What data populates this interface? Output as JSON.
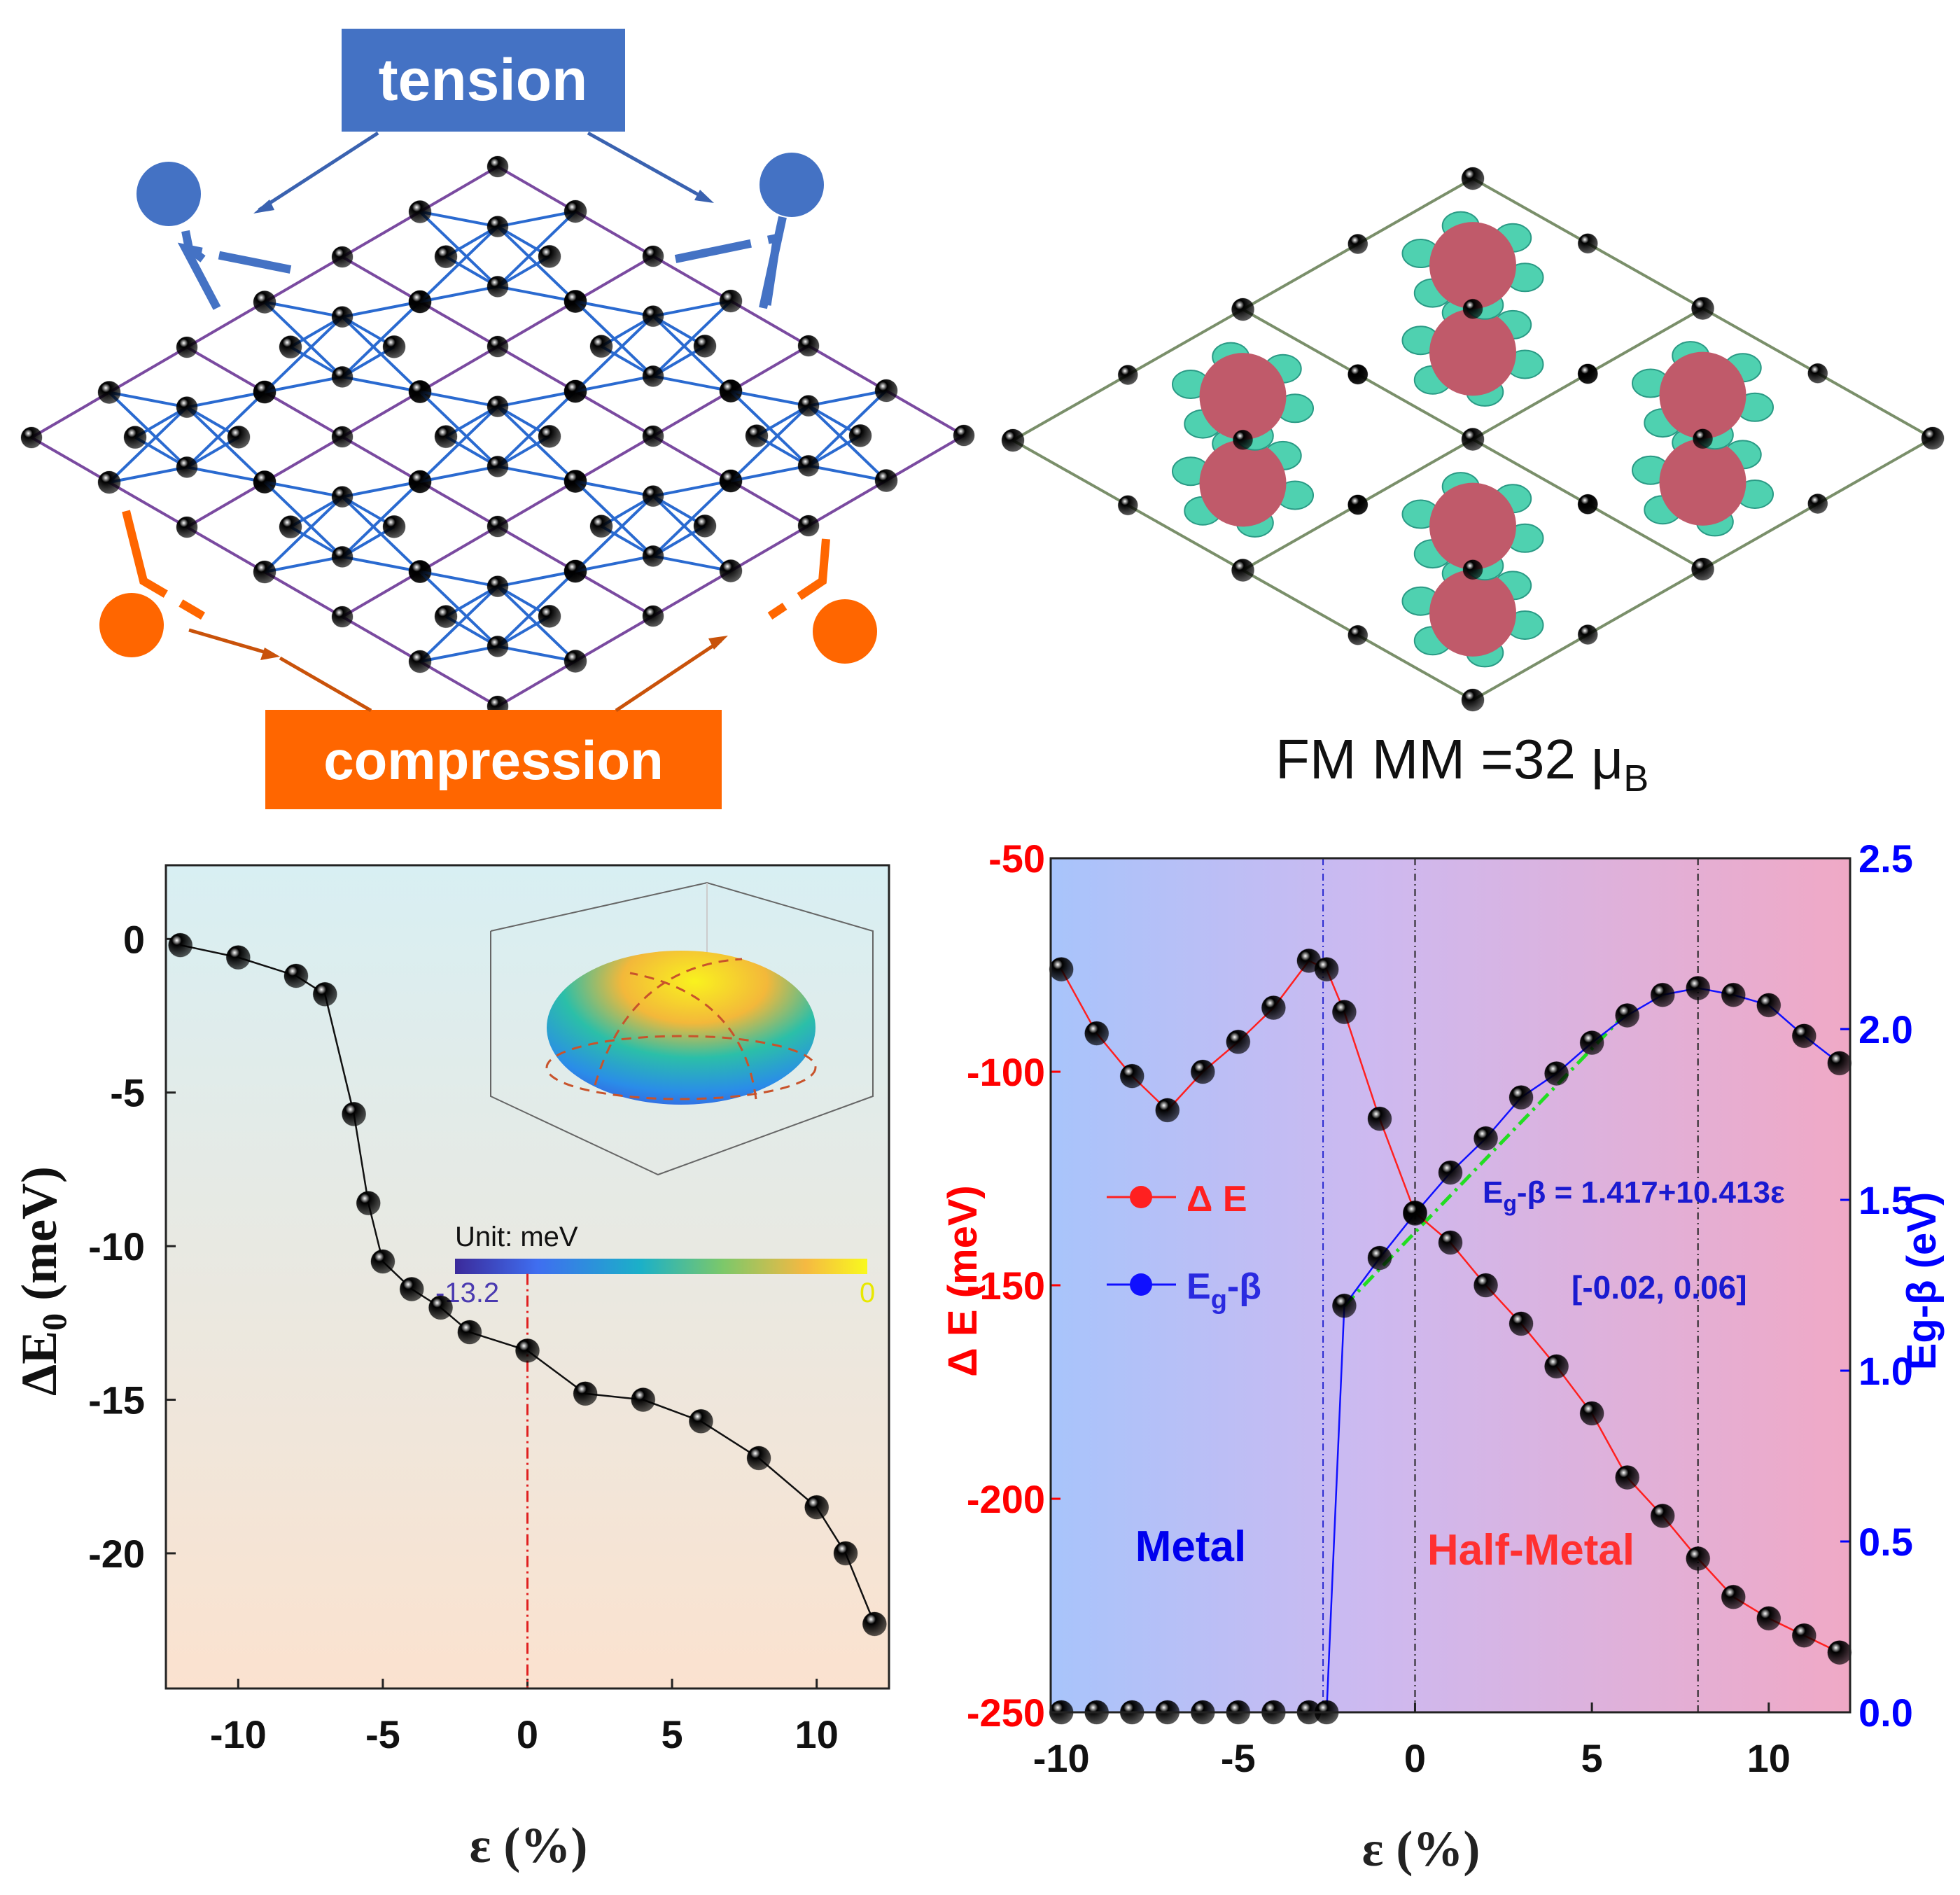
{
  "panels": {
    "strain_schematic": {
      "tension_label": "tension",
      "compression_label": "compression",
      "colors": {
        "tension": "#4472c4",
        "compression": "#ff6600",
        "atom_blue": "#1f5fd6",
        "atom_purple": "#b05cc0",
        "atom_green": "#9ccc65"
      }
    },
    "spin_density": {
      "label_prefix": "FM  MM =32 μ",
      "label_sub": "B"
    }
  },
  "chart_data": [
    {
      "type": "line",
      "title": "",
      "xlabel": "ε (%)",
      "ylabel": "ΔE",
      "ylabel_sub": "0",
      "ylabel_unit": " (meV)",
      "xlim": [
        -12.5,
        12.5
      ],
      "ylim": [
        -24.4,
        2.4
      ],
      "xticks": [
        -10,
        -5,
        0,
        5,
        10
      ],
      "yticks": [
        0,
        -5,
        -10,
        -15,
        -20
      ],
      "x": [
        -12,
        -10,
        -8,
        -7,
        -6,
        -5.5,
        -5,
        -4,
        -3,
        -2,
        0,
        2,
        4,
        6,
        8,
        10,
        11,
        12
      ],
      "y": [
        -0.2,
        -0.6,
        -1.2,
        -1.8,
        -5.7,
        -8.6,
        -10.5,
        -11.4,
        -12.0,
        -12.8,
        -13.4,
        -14.8,
        -15.0,
        -15.7,
        -16.9,
        -18.5,
        -20.0,
        -22.3
      ],
      "point_colors": [
        "black",
        "blue",
        "black",
        "black",
        "black",
        "black",
        "blue",
        "black",
        "black",
        "black",
        "black",
        "black",
        "black",
        "red",
        "black",
        "red",
        "black",
        "black"
      ],
      "reference_line_x": 0,
      "inset": {
        "colorbar_title": "Unit: meV",
        "colorbar_min": "-13.2",
        "colorbar_max": "0"
      }
    },
    {
      "type": "line",
      "xlabel": "ε (%)",
      "xlim": [
        -10.3,
        12.3
      ],
      "xticks": [
        -10,
        -5,
        0,
        5,
        10
      ],
      "left_axis": {
        "label": "Δ E (meV)",
        "ylim": [
          -250,
          -50
        ],
        "ticks": [
          -50,
          -100,
          -150,
          -200,
          -250
        ],
        "color": "#ff0000"
      },
      "right_axis": {
        "label": "Eg-β (eV)",
        "ylim": [
          0,
          2.5
        ],
        "ticks": [
          "0.0",
          "0.5",
          "1.0",
          "1.5",
          "2.0",
          "2.5"
        ],
        "color": "#0000ff"
      },
      "series": [
        {
          "name": "Δ E",
          "axis": "left",
          "color": "#ff2020",
          "x": [
            -10,
            -9,
            -8,
            -7,
            -6,
            -5,
            -4,
            -3,
            -2.5,
            -2,
            -1,
            0,
            1,
            2,
            3,
            4,
            5,
            6,
            7,
            8,
            9,
            10,
            11,
            12
          ],
          "y": [
            -76,
            -91,
            -101,
            -109,
            -100,
            -93,
            -85,
            -74,
            -76,
            -86,
            -111,
            -133,
            -140,
            -150,
            -159,
            -169,
            -180,
            -195,
            -204,
            -214,
            -223,
            -228,
            -232,
            -236
          ],
          "point_colors": [
            "red",
            "red",
            "black",
            "red",
            "red",
            "red",
            "black",
            "red",
            "red",
            "black",
            "red",
            "red",
            "red",
            "black",
            "red",
            "red",
            "red",
            "black",
            "red",
            "black",
            "red",
            "red",
            "red",
            "red"
          ]
        },
        {
          "name_main": "E",
          "name_sub": "g",
          "name_tail": "-β",
          "axis": "right",
          "color": "#1010ff",
          "x": [
            -10,
            -9,
            -8,
            -7,
            -6,
            -5,
            -4,
            -3,
            -2.5,
            -2,
            -1,
            0,
            1,
            2,
            3,
            4,
            5,
            6,
            7,
            8,
            9,
            10,
            11,
            12
          ],
          "y": [
            0,
            0,
            0,
            0,
            0,
            0,
            0,
            0,
            0,
            1.19,
            1.33,
            1.46,
            1.58,
            1.68,
            1.8,
            1.87,
            1.96,
            2.04,
            2.1,
            2.12,
            2.1,
            2.07,
            1.98,
            1.9
          ],
          "point_colors": [
            "blue",
            "blue",
            "black",
            "blue",
            "blue",
            "blue",
            "black",
            "blue",
            "blue",
            "black",
            "blue",
            "blue",
            "blue",
            "black",
            "blue",
            "blue",
            "blue",
            "black",
            "blue",
            "black",
            "blue",
            "blue",
            "blue",
            "blue"
          ]
        }
      ],
      "fit": {
        "label_main": "E",
        "label_sub": "g",
        "label_tail": "-β = 1.417+10.413ε",
        "range_label": "[-0.02, 0.06]",
        "x": [
          -2,
          6
        ],
        "y": [
          1.19,
          2.05
        ],
        "color": "#22dd22"
      },
      "regions": [
        {
          "label": "Metal",
          "color": "#0000ee"
        },
        {
          "label": "Half-Metal",
          "color": "#ff3030"
        }
      ],
      "vlines_x": [
        -2.6,
        0,
        8
      ]
    }
  ]
}
